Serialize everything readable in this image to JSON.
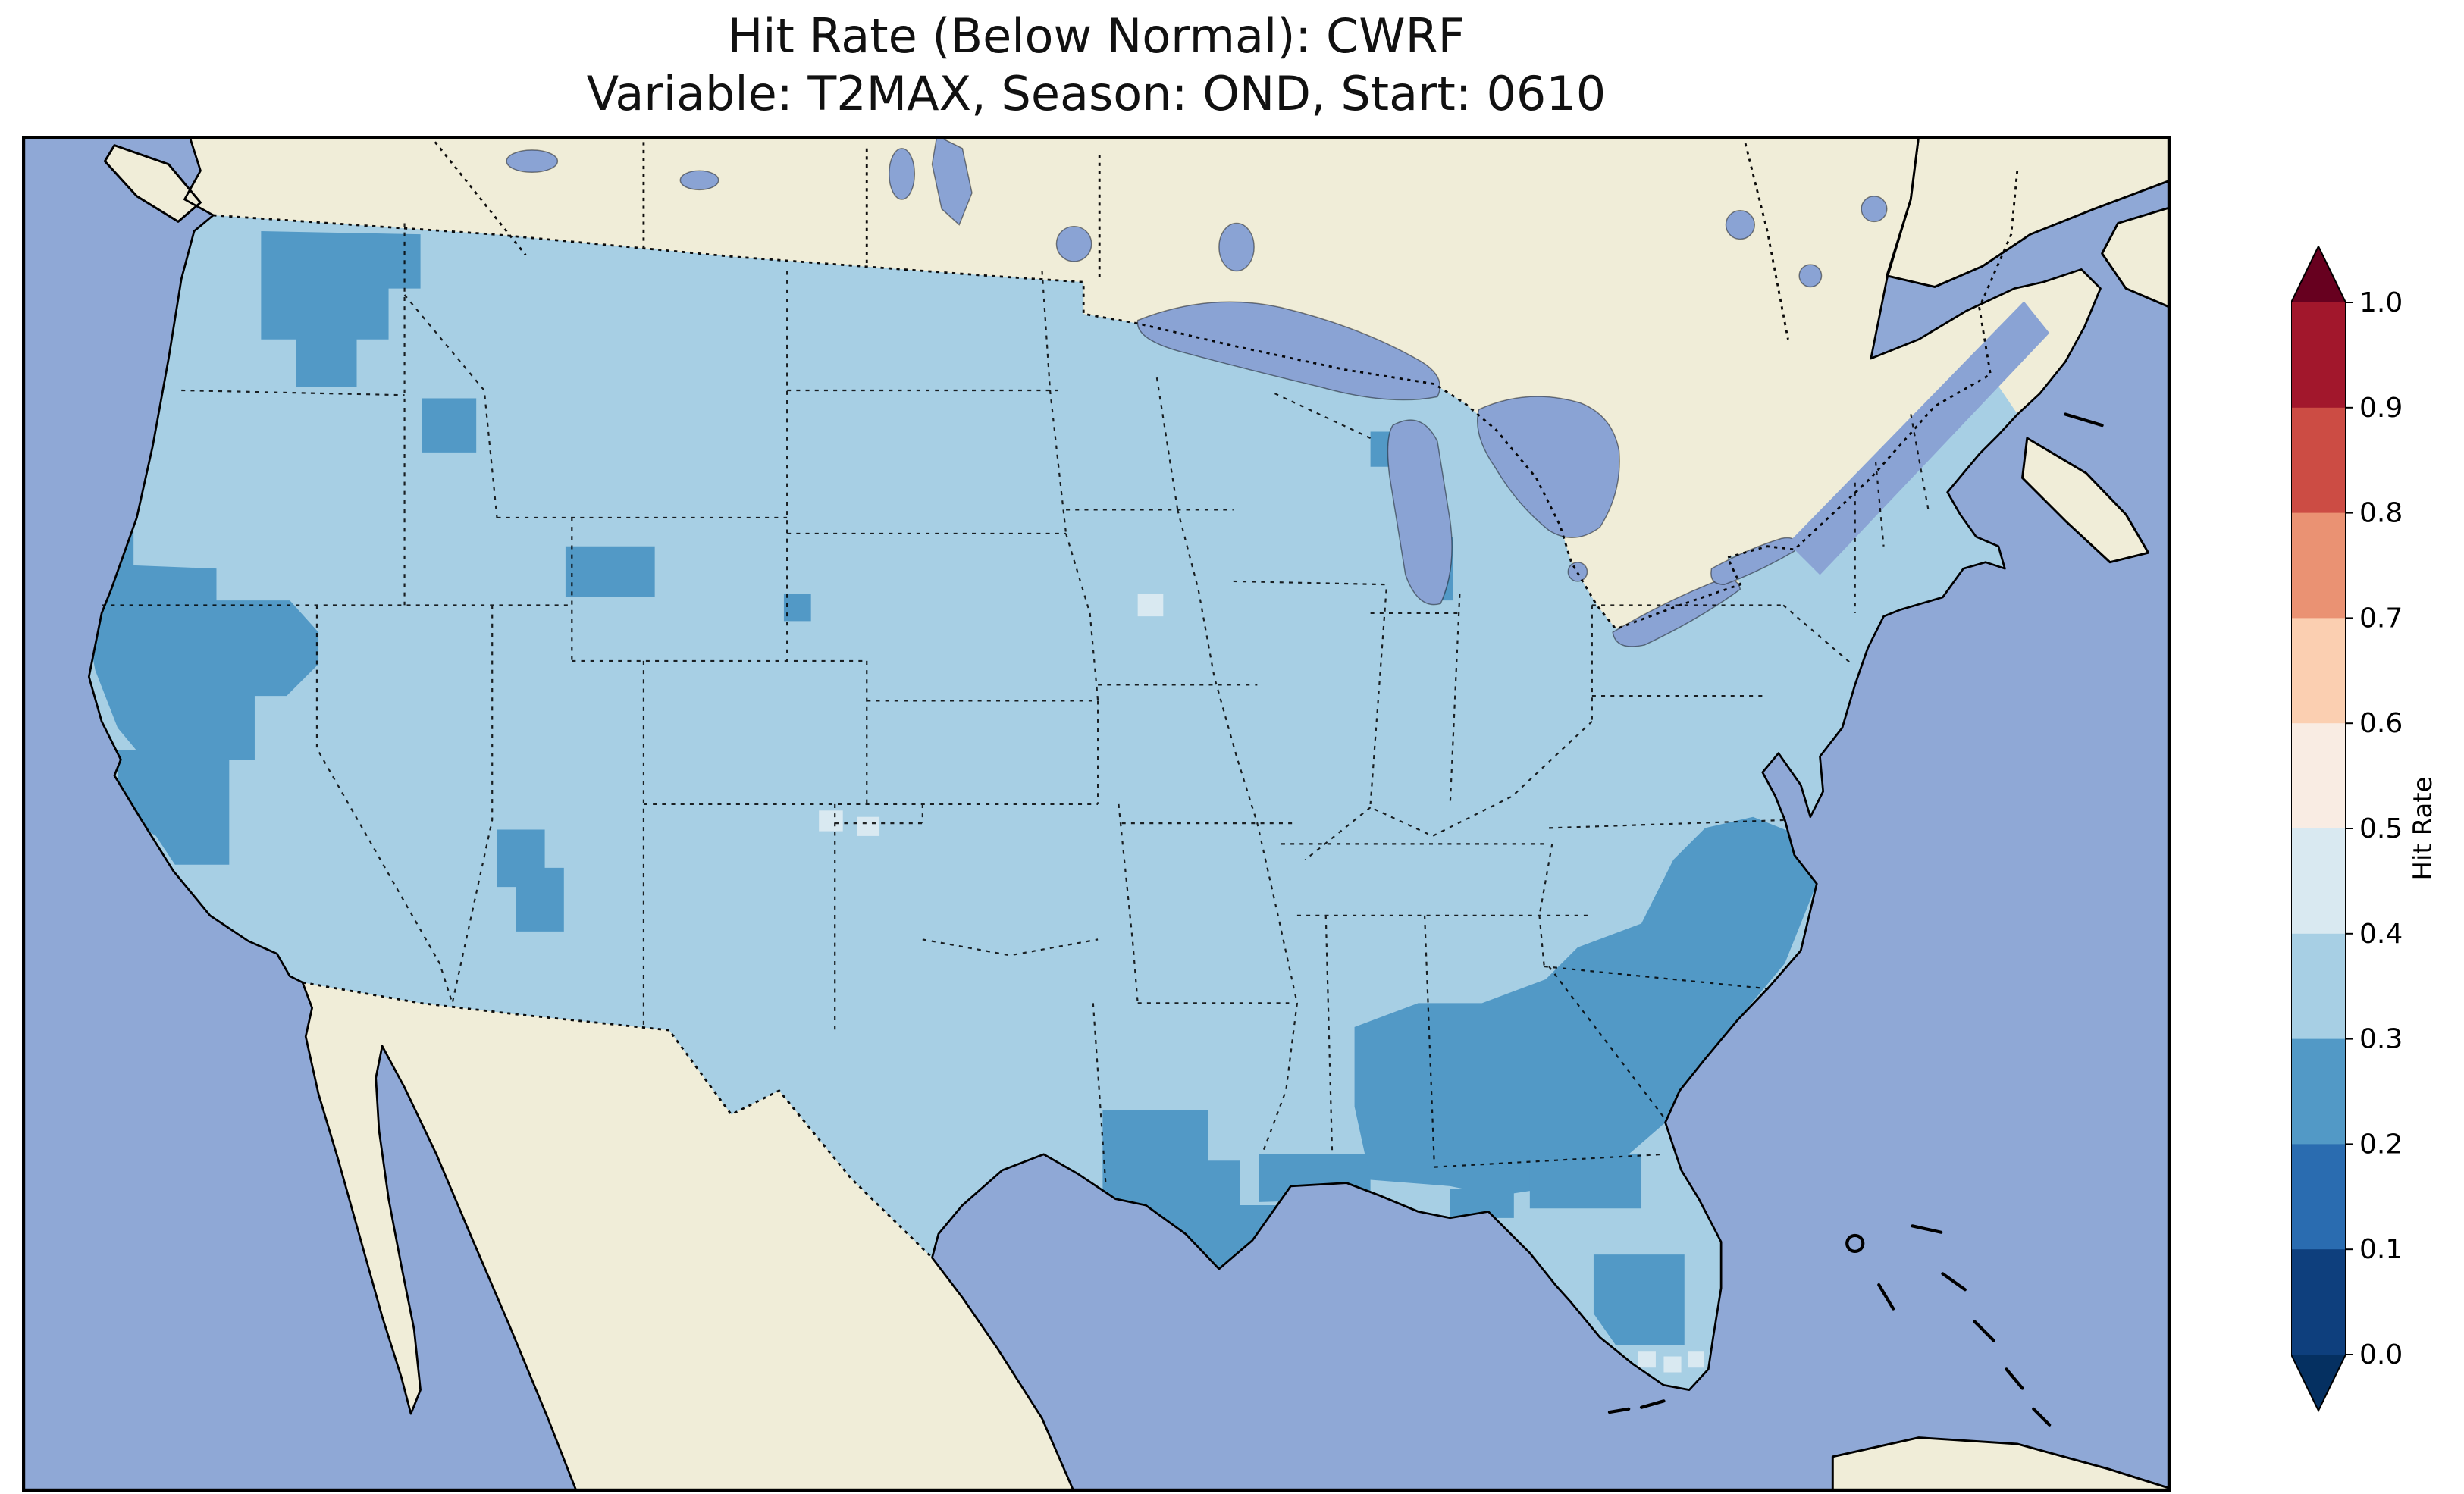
{
  "title": {
    "line1": "Hit Rate (Below Normal): CWRF",
    "line2": "Variable: T2MAX, Season: OND, Start: 0610"
  },
  "colorbar": {
    "label": "Hit Rate",
    "ticks": [
      "1.0",
      "0.9",
      "0.8",
      "0.7",
      "0.6",
      "0.5",
      "0.4",
      "0.3",
      "0.2",
      "0.1",
      "0.0"
    ],
    "segment_colors_top_to_bottom": [
      "#a2172c",
      "#cc4c44",
      "#ea9273",
      "#fbcfb1",
      "#f9ece3",
      "#d9e9f1",
      "#a7cfe4",
      "#5299c6",
      "#2a6cb0",
      "#0e3f7d"
    ],
    "extend_over_color": "#67001f",
    "extend_under_color": "#053061"
  },
  "colors": {
    "ocean": "#8fa8d6",
    "land": "#f0edd8",
    "lake": "#8aa3d4",
    "us-base": "#a7cfe4",
    "patch-low": "#5299c6",
    "patch-mid": "#d9e9f1",
    "coastline": "#000000"
  },
  "chart_data": {
    "type": "heatmap",
    "title": "Hit Rate (Below Normal): CWRF",
    "subtitle": "Variable: T2MAX, Season: OND, Start: 0610",
    "variable": "T2MAX",
    "season": "OND",
    "start": "0610",
    "model": "CWRF",
    "category": "Below Normal",
    "map_extent": "Contiguous United States (Lambert Conformal style view with Canada, Mexico, Gulf of Mexico, Caribbean fringe)",
    "colorbar_label": "Hit Rate",
    "colorbar_range": [
      0.0,
      1.0
    ],
    "colorbar_ticks": [
      0.0,
      0.1,
      0.2,
      0.3,
      0.4,
      0.5,
      0.6,
      0.7,
      0.8,
      0.9,
      1.0
    ],
    "colormap": "RdBu_r (discrete, 10 bins, extended both ends)",
    "legend_position": "right vertical colorbar",
    "summary_regions": [
      {
        "region": "Most of the contiguous US",
        "hit_rate": "0.3-0.4"
      },
      {
        "region": "Washington Cascades / Pacific Northwest interior",
        "hit_rate": "0.2-0.3"
      },
      {
        "region": "Southern Oregon coast and Northern California",
        "hit_rate": "0.2-0.3"
      },
      {
        "region": "Central California coast (San Francisco to Monterey)",
        "hit_rate": "0.2-0.3"
      },
      {
        "region": "Southeast Oregon / Idaho-Nevada border pocket",
        "hit_rate": "0.2-0.3"
      },
      {
        "region": "Northwest Wyoming (Yellowstone area)",
        "hit_rate": "0.2-0.3"
      },
      {
        "region": "Central Utah",
        "hit_rate": "0.2-0.3"
      },
      {
        "region": "Southern Louisiana and Mississippi/Alabama Gulf coast",
        "hit_rate": "0.2-0.3"
      },
      {
        "region": "Alabama-Georgia-South Carolina and coastal North Carolina plain",
        "hit_rate": "0.2-0.3"
      },
      {
        "region": "North and central Florida patches",
        "hit_rate": "0.2-0.3"
      },
      {
        "region": "Upper Michigan / Lake Michigan shore cells",
        "hit_rate": "0.2-0.3"
      },
      {
        "region": "Scattered single cells: Nebraska, Four Corners, South Florida",
        "hit_rate": "0.4-0.5"
      }
    ]
  }
}
